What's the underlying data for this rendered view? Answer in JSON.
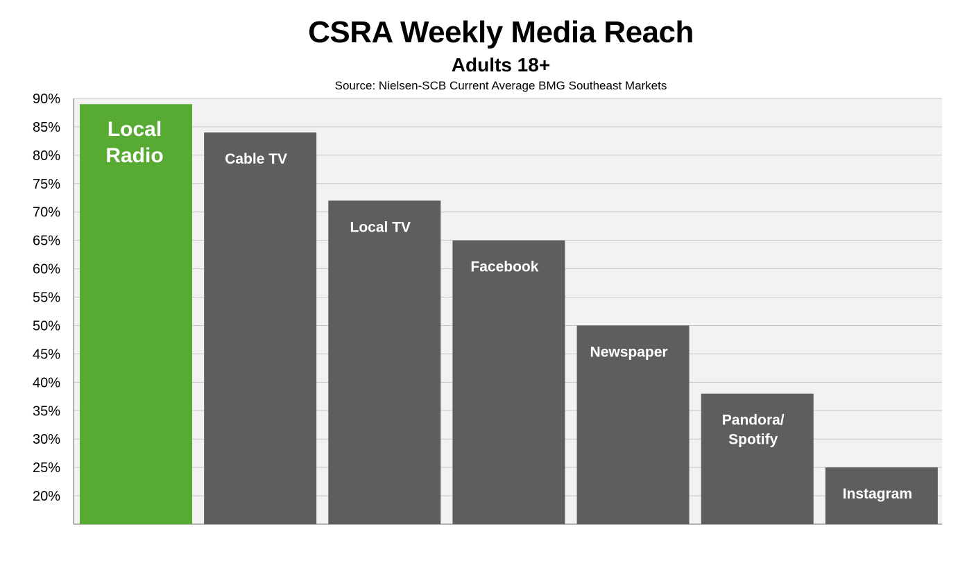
{
  "chart_data": {
    "type": "bar",
    "title": "CSRA Weekly Media Reach",
    "subtitle": "Adults 18+",
    "source": "Source: Nielsen-SCB  Current Average BMG Southeast Markets",
    "categories": [
      "Local Radio",
      "Cable TV",
      "Local TV",
      "Facebook",
      "Newspaper",
      "Pandora/ Spotify",
      "Instagram"
    ],
    "bar_label_lines": [
      [
        "Local",
        "Radio"
      ],
      [
        "Cable TV"
      ],
      [
        "Local TV"
      ],
      [
        "Facebook"
      ],
      [
        "Newspaper"
      ],
      [
        "Pandora/",
        "Spotify"
      ],
      [
        "Instagram"
      ]
    ],
    "values": [
      89,
      84,
      72,
      65,
      50,
      38,
      25
    ],
    "ylim": [
      15,
      90
    ],
    "yticks": [
      "20%",
      "25%",
      "30%",
      "35%",
      "40%",
      "45%",
      "50%",
      "55%",
      "60%",
      "65%",
      "70%",
      "75%",
      "80%",
      "85%",
      "90%"
    ],
    "ytick_values": [
      20,
      25,
      30,
      35,
      40,
      45,
      50,
      55,
      60,
      65,
      70,
      75,
      80,
      85,
      90
    ],
    "grid": true,
    "colors": {
      "highlight": "#57ab33",
      "bar": "#5e5e5e",
      "plot_bg": "#f2f2f4",
      "grid": "#c8c8c8",
      "label": "#ffffff"
    },
    "highlight_index": 0
  }
}
